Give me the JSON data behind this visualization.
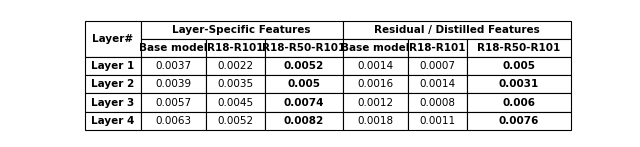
{
  "col_header1": "Layer-Specific Features",
  "col_header2": "Residual / Distilled Features",
  "sub_headers": [
    "Base model",
    "R18-R101",
    "R18-R50-R101",
    "Base model",
    "R18-R101",
    "R18-R50-R101"
  ],
  "row_labels": [
    "Layer 1",
    "Layer 2",
    "Layer 3",
    "Layer 4"
  ],
  "data": [
    [
      "0.0037",
      "0.0022",
      "0.0052",
      "0.0014",
      "0.0007",
      "0.005"
    ],
    [
      "0.0039",
      "0.0035",
      "0.005",
      "0.0016",
      "0.0014",
      "0.0031"
    ],
    [
      "0.0057",
      "0.0045",
      "0.0074",
      "0.0012",
      "0.0008",
      "0.006"
    ],
    [
      "0.0063",
      "0.0052",
      "0.0082",
      "0.0018",
      "0.0011",
      "0.0076"
    ]
  ],
  "border_color": "#000000",
  "font_size": 7.5,
  "header_font_size": 7.5,
  "fig_width": 6.4,
  "fig_height": 1.47
}
